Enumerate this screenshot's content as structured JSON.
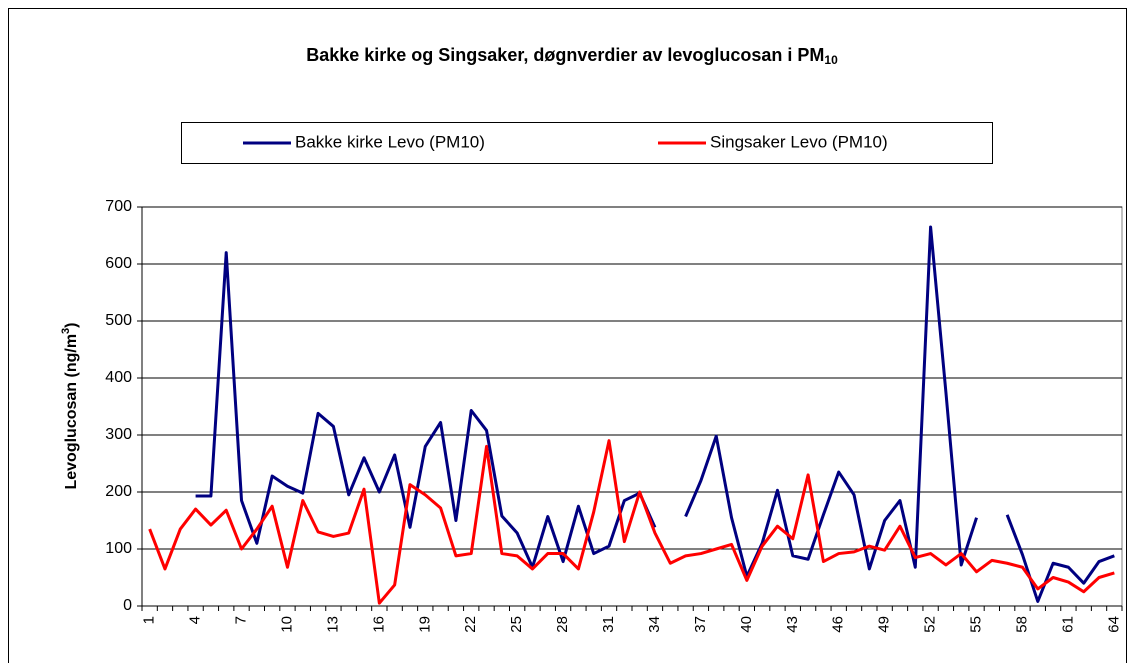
{
  "chart_data": {
    "type": "line",
    "title": [
      "Bakke kirke og Singsaker, døgnverdier av levoglucosan i PM",
      "10"
    ],
    "y_label": [
      "Levoglucosan (ng/m",
      "3",
      ")"
    ],
    "categories": [
      "1",
      null,
      null,
      "4",
      null,
      null,
      "7",
      null,
      null,
      "10",
      null,
      null,
      "13",
      null,
      null,
      "16",
      null,
      null,
      "19",
      null,
      null,
      "22",
      null,
      null,
      "25",
      null,
      null,
      "28",
      null,
      null,
      "31",
      null,
      null,
      "34",
      null,
      null,
      "37",
      null,
      null,
      "40",
      null,
      null,
      "43",
      null,
      null,
      "46",
      null,
      null,
      "49",
      null,
      null,
      "52",
      null,
      null,
      "55",
      null,
      null,
      "58",
      null,
      null,
      "61",
      null,
      null,
      "64"
    ],
    "series": [
      {
        "name": "Bakke kirke Levo (PM10)",
        "color": "#000080",
        "values": [
          null,
          null,
          null,
          193,
          193,
          620,
          185,
          110,
          228,
          210,
          198,
          338,
          315,
          195,
          260,
          200,
          265,
          138,
          280,
          322,
          150,
          343,
          308,
          158,
          128,
          68,
          157,
          78,
          175,
          92,
          105,
          185,
          198,
          138,
          null,
          157,
          220,
          298,
          155,
          52,
          110,
          203,
          88,
          82,
          160,
          235,
          195,
          65,
          150,
          185,
          68,
          665,
          375,
          72,
          155,
          null,
          160,
          90,
          8,
          75,
          68,
          40,
          78,
          88
        ]
      },
      {
        "name": "Singsaker Levo (PM10)",
        "color": "#ff0000",
        "values": [
          135,
          65,
          135,
          170,
          142,
          168,
          100,
          135,
          175,
          68,
          185,
          130,
          122,
          128,
          205,
          5,
          37,
          213,
          195,
          172,
          88,
          92,
          280,
          92,
          88,
          65,
          92,
          92,
          65,
          165,
          290,
          113,
          200,
          128,
          75,
          88,
          92,
          100,
          108,
          45,
          105,
          140,
          118,
          230,
          78,
          92,
          95,
          105,
          98,
          140,
          85,
          92,
          72,
          92,
          60,
          80,
          75,
          68,
          30,
          50,
          42,
          25,
          50,
          58
        ]
      }
    ],
    "ylim": [
      0,
      700
    ],
    "yticks": [
      0,
      100,
      200,
      300,
      400,
      500,
      600,
      700
    ],
    "grid": true
  }
}
